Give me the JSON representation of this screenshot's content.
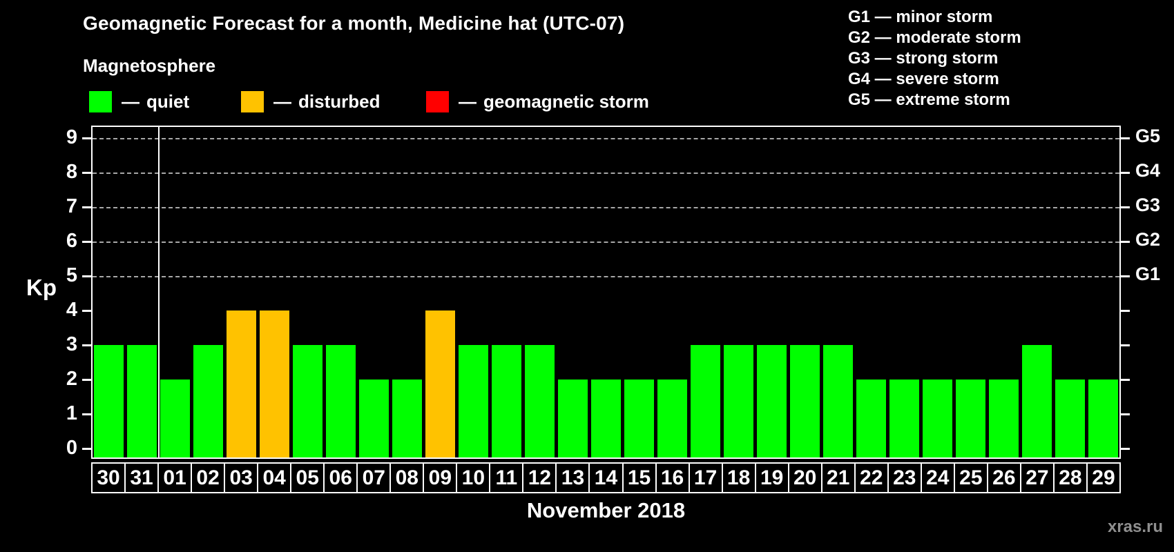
{
  "header": {
    "title": "Geomagnetic Forecast for a month, Medicine hat (UTC-07)",
    "subtitle": "Magnetosphere"
  },
  "legend": {
    "dash": "—",
    "items": [
      {
        "label": "quiet",
        "status": "quiet",
        "color": "#00FF00"
      },
      {
        "label": "disturbed",
        "status": "disturbed",
        "color": "#FFC200"
      },
      {
        "label": "geomagnetic storm",
        "status": "storm",
        "color": "#FF0000"
      }
    ]
  },
  "storm_scale": [
    {
      "text": "G1 — minor storm"
    },
    {
      "text": "G2 — moderate storm"
    },
    {
      "text": "G3 — strong storm"
    },
    {
      "text": "G4 — severe storm"
    },
    {
      "text": "G5 — extreme storm"
    }
  ],
  "chart_data": {
    "type": "bar",
    "title": "Geomagnetic Forecast for a month, Medicine hat (UTC-07)",
    "ylabel": "Kp",
    "xlabel": "November 2018",
    "ylim": [
      0,
      9.4
    ],
    "grid": true,
    "yticks": [
      "0",
      "1",
      "2",
      "3",
      "4",
      "5",
      "6",
      "7",
      "8",
      "9"
    ],
    "grid_levels": [
      5,
      6,
      7,
      8,
      9
    ],
    "g_labels": [
      {
        "kp": 5,
        "label": "G1"
      },
      {
        "kp": 6,
        "label": "G2"
      },
      {
        "kp": 7,
        "label": "G3"
      },
      {
        "kp": 8,
        "label": "G4"
      },
      {
        "kp": 9,
        "label": "G5"
      }
    ],
    "categories": [
      "30",
      "31",
      "01",
      "02",
      "03",
      "04",
      "05",
      "06",
      "07",
      "08",
      "09",
      "10",
      "11",
      "12",
      "13",
      "14",
      "15",
      "16",
      "17",
      "18",
      "19",
      "20",
      "21",
      "22",
      "23",
      "24",
      "25",
      "26",
      "27",
      "28",
      "29"
    ],
    "values": [
      3,
      3,
      2,
      3,
      4,
      4,
      3,
      3,
      2,
      2,
      4,
      3,
      3,
      3,
      2,
      2,
      2,
      2,
      3,
      3,
      3,
      3,
      3,
      2,
      2,
      2,
      2,
      2,
      3,
      2,
      2
    ],
    "statuses": [
      "quiet",
      "quiet",
      "quiet",
      "quiet",
      "disturbed",
      "disturbed",
      "quiet",
      "quiet",
      "quiet",
      "quiet",
      "disturbed",
      "quiet",
      "quiet",
      "quiet",
      "quiet",
      "quiet",
      "quiet",
      "quiet",
      "quiet",
      "quiet",
      "quiet",
      "quiet",
      "quiet",
      "quiet",
      "quiet",
      "quiet",
      "quiet",
      "quiet",
      "quiet",
      "quiet",
      "quiet"
    ],
    "status_colors": {
      "quiet": "#00FF00",
      "disturbed": "#FFC200",
      "storm": "#FF0000"
    },
    "month_separator_after": "31"
  },
  "watermark": "xras.ru"
}
